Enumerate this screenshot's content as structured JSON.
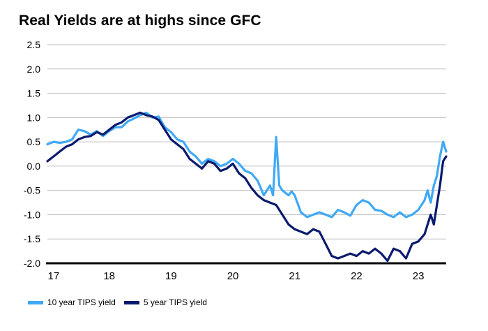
{
  "chart_data": {
    "type": "line",
    "title": "Real Yields are at highs since GFC",
    "xlabel": "",
    "ylabel": "",
    "ylim": [
      -2.0,
      2.5
    ],
    "xlim": [
      2017.0,
      2023.45
    ],
    "yticks": [
      "2.5",
      "2.0",
      "1.5",
      "1.0",
      "0.5",
      "0.0",
      "-0.5",
      "-1.0",
      "-1.5",
      "-2.0"
    ],
    "xticks": [
      {
        "label": "17",
        "value": 2017.1
      },
      {
        "label": "18",
        "value": 2018.0
      },
      {
        "label": "19",
        "value": 2019.0
      },
      {
        "label": "20",
        "value": 2020.0
      },
      {
        "label": "21",
        "value": 2021.0
      },
      {
        "label": "22",
        "value": 2022.0
      },
      {
        "label": "23",
        "value": 2023.0
      }
    ],
    "grid": true,
    "legend_position": "bottom-left",
    "series": [
      {
        "name": "10 year TIPS yield",
        "color": "#3fa9f5",
        "points": [
          [
            2017.0,
            0.45
          ],
          [
            2017.1,
            0.5
          ],
          [
            2017.2,
            0.48
          ],
          [
            2017.3,
            0.5
          ],
          [
            2017.4,
            0.55
          ],
          [
            2017.5,
            0.75
          ],
          [
            2017.6,
            0.72
          ],
          [
            2017.7,
            0.65
          ],
          [
            2017.8,
            0.72
          ],
          [
            2017.9,
            0.62
          ],
          [
            2018.0,
            0.72
          ],
          [
            2018.1,
            0.8
          ],
          [
            2018.2,
            0.8
          ],
          [
            2018.3,
            0.92
          ],
          [
            2018.4,
            0.98
          ],
          [
            2018.5,
            1.05
          ],
          [
            2018.6,
            1.1
          ],
          [
            2018.7,
            1.0
          ],
          [
            2018.8,
            1.02
          ],
          [
            2018.9,
            0.8
          ],
          [
            2019.0,
            0.7
          ],
          [
            2019.1,
            0.55
          ],
          [
            2019.2,
            0.5
          ],
          [
            2019.3,
            0.3
          ],
          [
            2019.4,
            0.2
          ],
          [
            2019.5,
            0.05
          ],
          [
            2019.6,
            0.15
          ],
          [
            2019.7,
            0.1
          ],
          [
            2019.8,
            0.0
          ],
          [
            2019.9,
            0.05
          ],
          [
            2020.0,
            0.15
          ],
          [
            2020.1,
            0.05
          ],
          [
            2020.2,
            -0.1
          ],
          [
            2020.3,
            -0.15
          ],
          [
            2020.4,
            -0.3
          ],
          [
            2020.5,
            -0.6
          ],
          [
            2020.6,
            -0.4
          ],
          [
            2020.65,
            -0.6
          ],
          [
            2020.7,
            0.6
          ],
          [
            2020.75,
            -0.4
          ],
          [
            2020.8,
            -0.5
          ],
          [
            2020.85,
            -0.55
          ],
          [
            2020.9,
            -0.6
          ],
          [
            2020.95,
            -0.52
          ],
          [
            2021.0,
            -0.6
          ],
          [
            2021.1,
            -0.95
          ],
          [
            2021.2,
            -1.05
          ],
          [
            2021.3,
            -1.0
          ],
          [
            2021.4,
            -0.95
          ],
          [
            2021.5,
            -1.0
          ],
          [
            2021.6,
            -1.05
          ],
          [
            2021.7,
            -0.9
          ],
          [
            2021.8,
            -0.95
          ],
          [
            2021.9,
            -1.02
          ],
          [
            2022.0,
            -0.8
          ],
          [
            2022.1,
            -0.7
          ],
          [
            2022.2,
            -0.75
          ],
          [
            2022.3,
            -0.9
          ],
          [
            2022.4,
            -0.92
          ],
          [
            2022.5,
            -1.0
          ],
          [
            2022.6,
            -1.05
          ],
          [
            2022.7,
            -0.95
          ],
          [
            2022.8,
            -1.05
          ],
          [
            2022.9,
            -1.0
          ],
          [
            2023.0,
            -0.9
          ],
          [
            2023.1,
            -0.7
          ],
          [
            2023.15,
            -0.5
          ],
          [
            2023.2,
            -0.75
          ],
          [
            2023.25,
            -0.4
          ],
          [
            2023.3,
            -0.2
          ],
          [
            2023.35,
            0.2
          ],
          [
            2023.4,
            0.5
          ],
          [
            2023.45,
            0.3
          ]
        ]
      },
      {
        "name": "5 year TIPS yield",
        "color": "#0a1a6e",
        "points": [
          [
            2017.0,
            0.1
          ],
          [
            2017.1,
            0.2
          ],
          [
            2017.2,
            0.3
          ],
          [
            2017.3,
            0.4
          ],
          [
            2017.4,
            0.45
          ],
          [
            2017.5,
            0.55
          ],
          [
            2017.6,
            0.6
          ],
          [
            2017.7,
            0.62
          ],
          [
            2017.8,
            0.7
          ],
          [
            2017.9,
            0.65
          ],
          [
            2018.0,
            0.75
          ],
          [
            2018.1,
            0.85
          ],
          [
            2018.2,
            0.9
          ],
          [
            2018.3,
            1.0
          ],
          [
            2018.4,
            1.05
          ],
          [
            2018.5,
            1.1
          ],
          [
            2018.6,
            1.05
          ],
          [
            2018.7,
            1.02
          ],
          [
            2018.8,
            0.95
          ],
          [
            2018.9,
            0.75
          ],
          [
            2019.0,
            0.55
          ],
          [
            2019.1,
            0.45
          ],
          [
            2019.2,
            0.35
          ],
          [
            2019.3,
            0.15
          ],
          [
            2019.4,
            0.05
          ],
          [
            2019.5,
            -0.05
          ],
          [
            2019.6,
            0.1
          ],
          [
            2019.7,
            0.05
          ],
          [
            2019.8,
            -0.1
          ],
          [
            2019.9,
            -0.05
          ],
          [
            2020.0,
            0.05
          ],
          [
            2020.1,
            -0.15
          ],
          [
            2020.2,
            -0.25
          ],
          [
            2020.3,
            -0.45
          ],
          [
            2020.4,
            -0.6
          ],
          [
            2020.5,
            -0.7
          ],
          [
            2020.6,
            -0.75
          ],
          [
            2020.7,
            -0.8
          ],
          [
            2020.8,
            -1.0
          ],
          [
            2020.9,
            -1.2
          ],
          [
            2021.0,
            -1.3
          ],
          [
            2021.1,
            -1.35
          ],
          [
            2021.2,
            -1.4
          ],
          [
            2021.3,
            -1.3
          ],
          [
            2021.4,
            -1.35
          ],
          [
            2021.5,
            -1.6
          ],
          [
            2021.6,
            -1.85
          ],
          [
            2021.7,
            -1.9
          ],
          [
            2021.8,
            -1.85
          ],
          [
            2021.9,
            -1.8
          ],
          [
            2022.0,
            -1.85
          ],
          [
            2022.1,
            -1.75
          ],
          [
            2022.2,
            -1.8
          ],
          [
            2022.3,
            -1.7
          ],
          [
            2022.4,
            -1.8
          ],
          [
            2022.5,
            -1.95
          ],
          [
            2022.6,
            -1.7
          ],
          [
            2022.7,
            -1.75
          ],
          [
            2022.8,
            -1.9
          ],
          [
            2022.9,
            -1.6
          ],
          [
            2023.0,
            -1.55
          ],
          [
            2023.1,
            -1.4
          ],
          [
            2023.15,
            -1.2
          ],
          [
            2023.2,
            -1.0
          ],
          [
            2023.25,
            -1.2
          ],
          [
            2023.3,
            -0.8
          ],
          [
            2023.35,
            -0.4
          ],
          [
            2023.4,
            0.1
          ],
          [
            2023.45,
            0.2
          ]
        ]
      }
    ]
  },
  "legend": {
    "series_10y": "10 year TIPS yield",
    "series_5y": "5 year TIPS yield"
  }
}
